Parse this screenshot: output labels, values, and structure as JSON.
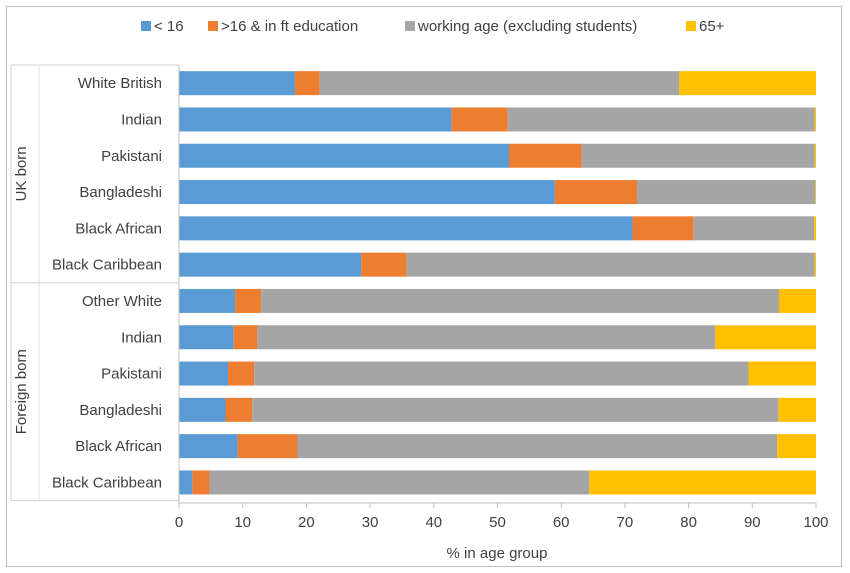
{
  "chart_data": {
    "type": "bar",
    "orientation": "horizontal",
    "stacked": true,
    "title": "",
    "xlabel": "% in age group",
    "ylabel": "",
    "xlim": [
      0,
      100
    ],
    "x_ticks": [
      "0",
      "10",
      "20",
      "30",
      "40",
      "50",
      "60",
      "70",
      "80",
      "90",
      "100"
    ],
    "grid": false,
    "legend_position": "top",
    "groups": [
      {
        "name": "UK born",
        "start": 0,
        "count": 6
      },
      {
        "name": "Foreign born",
        "start": 6,
        "count": 6
      }
    ],
    "categories": [
      "White British",
      "Indian",
      "Pakistani",
      "Bangladeshi",
      "Black African",
      "Black Caribbean",
      "Other White",
      "Indian",
      "Pakistani",
      "Bangladeshi",
      "Black African",
      "Black Caribbean"
    ],
    "series": [
      {
        "name": "< 16",
        "color": "#5B9BD5",
        "values": [
          18.2,
          42.8,
          51.8,
          59.0,
          71.2,
          28.6,
          8.8,
          8.6,
          7.7,
          7.3,
          9.2,
          2.1
        ]
      },
      {
        "name": ">16 &  in ft education",
        "color": "#ED7D31",
        "values": [
          3.9,
          8.8,
          11.4,
          12.9,
          9.6,
          7.1,
          4.1,
          3.7,
          4.1,
          4.2,
          9.4,
          2.7
        ]
      },
      {
        "name": "working age (excluding students)",
        "color": "#A5A5A5",
        "values": [
          56.4,
          48.2,
          36.6,
          28.0,
          18.9,
          64.1,
          81.3,
          71.9,
          77.6,
          82.6,
          75.3,
          59.6
        ]
      },
      {
        "name": "65+",
        "color": "#FFC000",
        "values": [
          21.5,
          0.2,
          0.2,
          0.1,
          0.3,
          0.2,
          5.8,
          15.8,
          10.6,
          5.9,
          6.1,
          35.6
        ]
      }
    ]
  }
}
